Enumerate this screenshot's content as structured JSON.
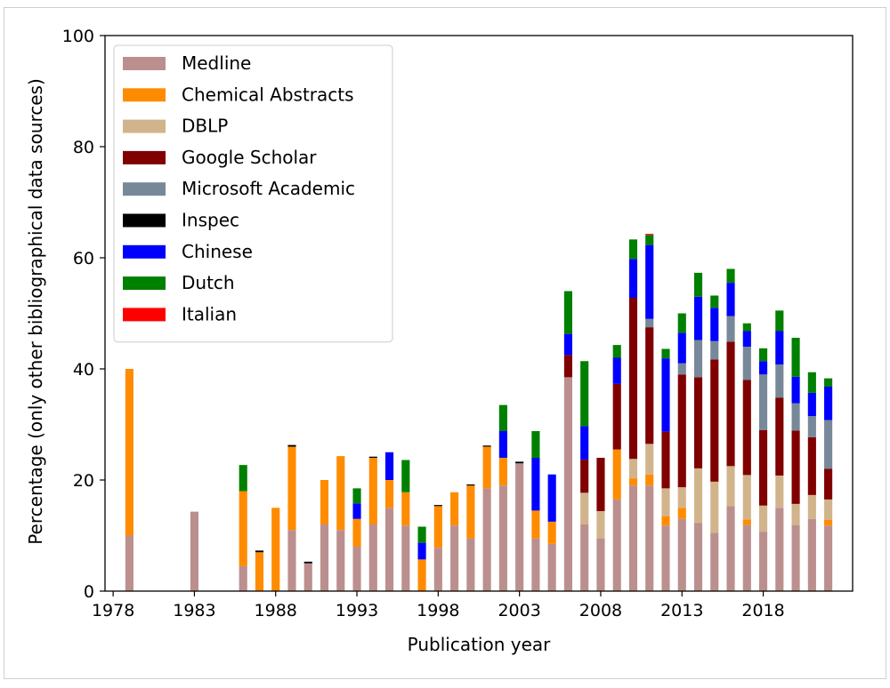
{
  "chart_data": {
    "type": "bar",
    "stacked": true,
    "title": "",
    "xlabel": "Publication year",
    "ylabel": "Percentage (only other bibliographical data sources)",
    "ylim": [
      0,
      100
    ],
    "xlim": [
      1977.5,
      2023.5
    ],
    "xticks": [
      1978,
      1983,
      1988,
      1993,
      1998,
      2003,
      2008,
      2013,
      2018
    ],
    "yticks": [
      0,
      20,
      40,
      60,
      80,
      100
    ],
    "legend_position": "top-left",
    "grid": false,
    "x": [
      1979,
      1980,
      1981,
      1982,
      1983,
      1984,
      1985,
      1986,
      1987,
      1988,
      1989,
      1990,
      1991,
      1992,
      1993,
      1994,
      1995,
      1996,
      1997,
      1998,
      1999,
      2000,
      2001,
      2002,
      2003,
      2004,
      2005,
      2006,
      2007,
      2008,
      2009,
      2010,
      2011,
      2012,
      2013,
      2014,
      2015,
      2016,
      2017,
      2018,
      2019,
      2020,
      2021,
      2022
    ],
    "series": [
      {
        "name": "Medline",
        "color": "#bc8f8f",
        "values": [
          10,
          0,
          0,
          0,
          14.3,
          0,
          0,
          4.5,
          0,
          0,
          11,
          5,
          12,
          11,
          8,
          12,
          15,
          11.8,
          0,
          7.8,
          11.8,
          9.5,
          18.5,
          19,
          23,
          9.5,
          8.5,
          38.5,
          12,
          9.5,
          16.5,
          19,
          19,
          11.8,
          13,
          12.3,
          10.5,
          15.3,
          11.9,
          10.7,
          15,
          11.9,
          13,
          11.8
        ]
      },
      {
        "name": "Chemical Abstracts",
        "color": "#ff8c00",
        "values": [
          30,
          0,
          0,
          0,
          0,
          0,
          0,
          13.5,
          7,
          15,
          15,
          0,
          8,
          13.3,
          5,
          12,
          5,
          6,
          5.7,
          7.5,
          6,
          9.5,
          7.5,
          5,
          0,
          5,
          4,
          0,
          0,
          0,
          9,
          1.3,
          2,
          1.7,
          2,
          0,
          0,
          0,
          1,
          0,
          0,
          0,
          0,
          1
        ]
      },
      {
        "name": "DBLP",
        "color": "#d2b48c",
        "values": [
          0,
          0,
          0,
          0,
          0,
          0,
          0,
          0,
          0,
          0,
          0,
          0,
          0,
          0,
          0,
          0,
          0,
          0,
          0,
          0,
          0,
          0,
          0,
          0,
          0,
          0,
          0,
          0,
          5.7,
          4.9,
          0,
          3.5,
          5.5,
          5,
          3.7,
          9.8,
          9.2,
          7.2,
          8,
          4.7,
          5.8,
          3.8,
          4.3,
          3.7
        ]
      },
      {
        "name": "Google Scholar",
        "color": "#800000",
        "values": [
          0,
          0,
          0,
          0,
          0,
          0,
          0,
          0,
          0,
          0,
          0,
          0,
          0,
          0,
          0,
          0,
          0,
          0,
          0,
          0,
          0,
          0,
          0,
          0,
          0,
          0,
          0,
          4,
          6,
          9.6,
          11.8,
          29,
          21,
          10.2,
          20.3,
          16.4,
          22,
          22.4,
          17.1,
          13.6,
          14,
          13.2,
          10.4,
          5.5
        ]
      },
      {
        "name": "Microsoft Academic",
        "color": "#778899",
        "values": [
          0,
          0,
          0,
          0,
          0,
          0,
          0,
          0,
          0,
          0,
          0,
          0,
          0,
          0,
          0,
          0,
          0,
          0,
          0,
          0,
          0,
          0,
          0,
          0,
          0,
          0,
          0,
          0,
          0,
          0,
          0,
          0,
          1.5,
          0,
          2,
          6.7,
          3.3,
          4.6,
          6,
          10,
          6,
          4.9,
          3.8,
          8.8
        ]
      },
      {
        "name": "Inspec",
        "color": "#000000",
        "values": [
          0,
          0,
          0,
          0,
          0,
          0,
          0,
          0,
          0.3,
          0,
          0.3,
          0.3,
          0,
          0,
          0,
          0.2,
          0,
          0,
          0,
          0.2,
          0,
          0.2,
          0.2,
          0,
          0.3,
          0,
          0,
          0,
          0,
          0,
          0,
          0,
          0,
          0,
          0,
          0,
          0,
          0,
          0,
          0,
          0,
          0,
          0,
          0
        ]
      },
      {
        "name": "Chinese",
        "color": "#0000ff",
        "values": [
          0,
          0,
          0,
          0,
          0,
          0,
          0,
          0,
          0,
          0,
          0,
          0,
          0,
          0,
          2.8,
          0,
          5,
          0,
          3,
          0,
          0,
          0,
          0,
          4.8,
          0,
          9.5,
          8.5,
          3.8,
          6,
          0,
          4.7,
          7,
          13.3,
          13.2,
          5.5,
          7.8,
          6,
          6,
          2.8,
          2.4,
          6,
          4.8,
          4.2,
          6
        ]
      },
      {
        "name": "Dutch",
        "color": "#008000",
        "values": [
          0,
          0,
          0,
          0,
          0,
          0,
          0,
          4.7,
          0,
          0,
          0,
          0,
          0,
          0,
          2.7,
          0,
          0,
          5.8,
          2.9,
          0,
          0,
          0,
          0,
          4.7,
          0,
          4.8,
          0,
          7.7,
          11.7,
          0,
          2.3,
          3.5,
          1.8,
          1.7,
          3.5,
          4.3,
          2.2,
          2.5,
          1.4,
          2.3,
          3.7,
          7,
          3.7,
          1.5
        ]
      },
      {
        "name": "Italian",
        "color": "#ff0000",
        "values": [
          0,
          0,
          0,
          0,
          0,
          0,
          0,
          0,
          0,
          0,
          0,
          0,
          0,
          0,
          0,
          0,
          0,
          0,
          0,
          0,
          0,
          0,
          0,
          0,
          0,
          0,
          0,
          0,
          0,
          0,
          0,
          0,
          0.2,
          0,
          0,
          0,
          0,
          0,
          0,
          0,
          0,
          0,
          0,
          0
        ]
      }
    ]
  }
}
